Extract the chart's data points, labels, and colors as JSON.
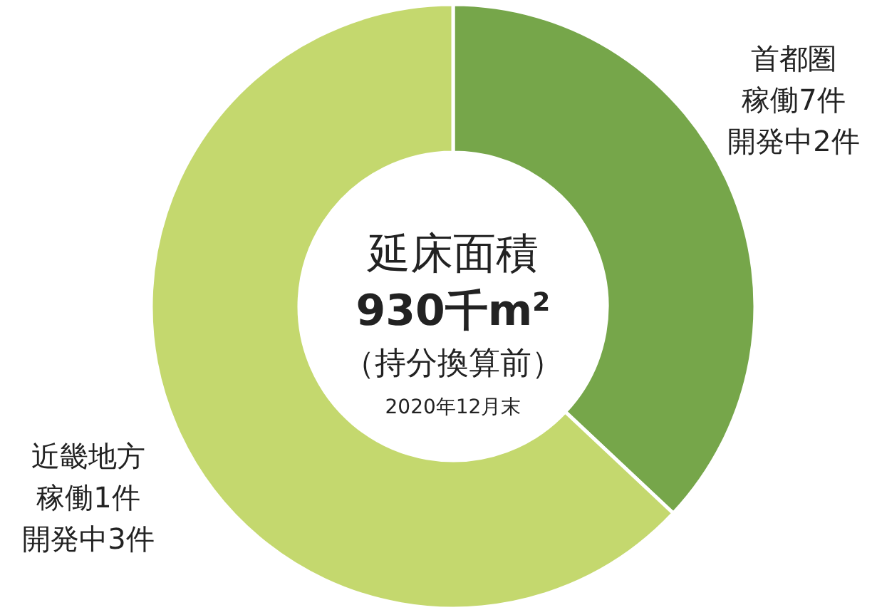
{
  "chart_data": {
    "type": "donut",
    "title": "延床面積",
    "categories": [
      "首都圏",
      "近畿地方"
    ],
    "values": [
      37,
      63
    ],
    "colors": [
      "#76a64a",
      "#c4d86e"
    ],
    "annotations": [
      "930千m$^{2}$",
      "（持分換算前）",
      "2020年12月末",
      "稼働7件",
      "開発中2件",
      "稼働1件",
      "開発中3件"
    ]
  }
}
